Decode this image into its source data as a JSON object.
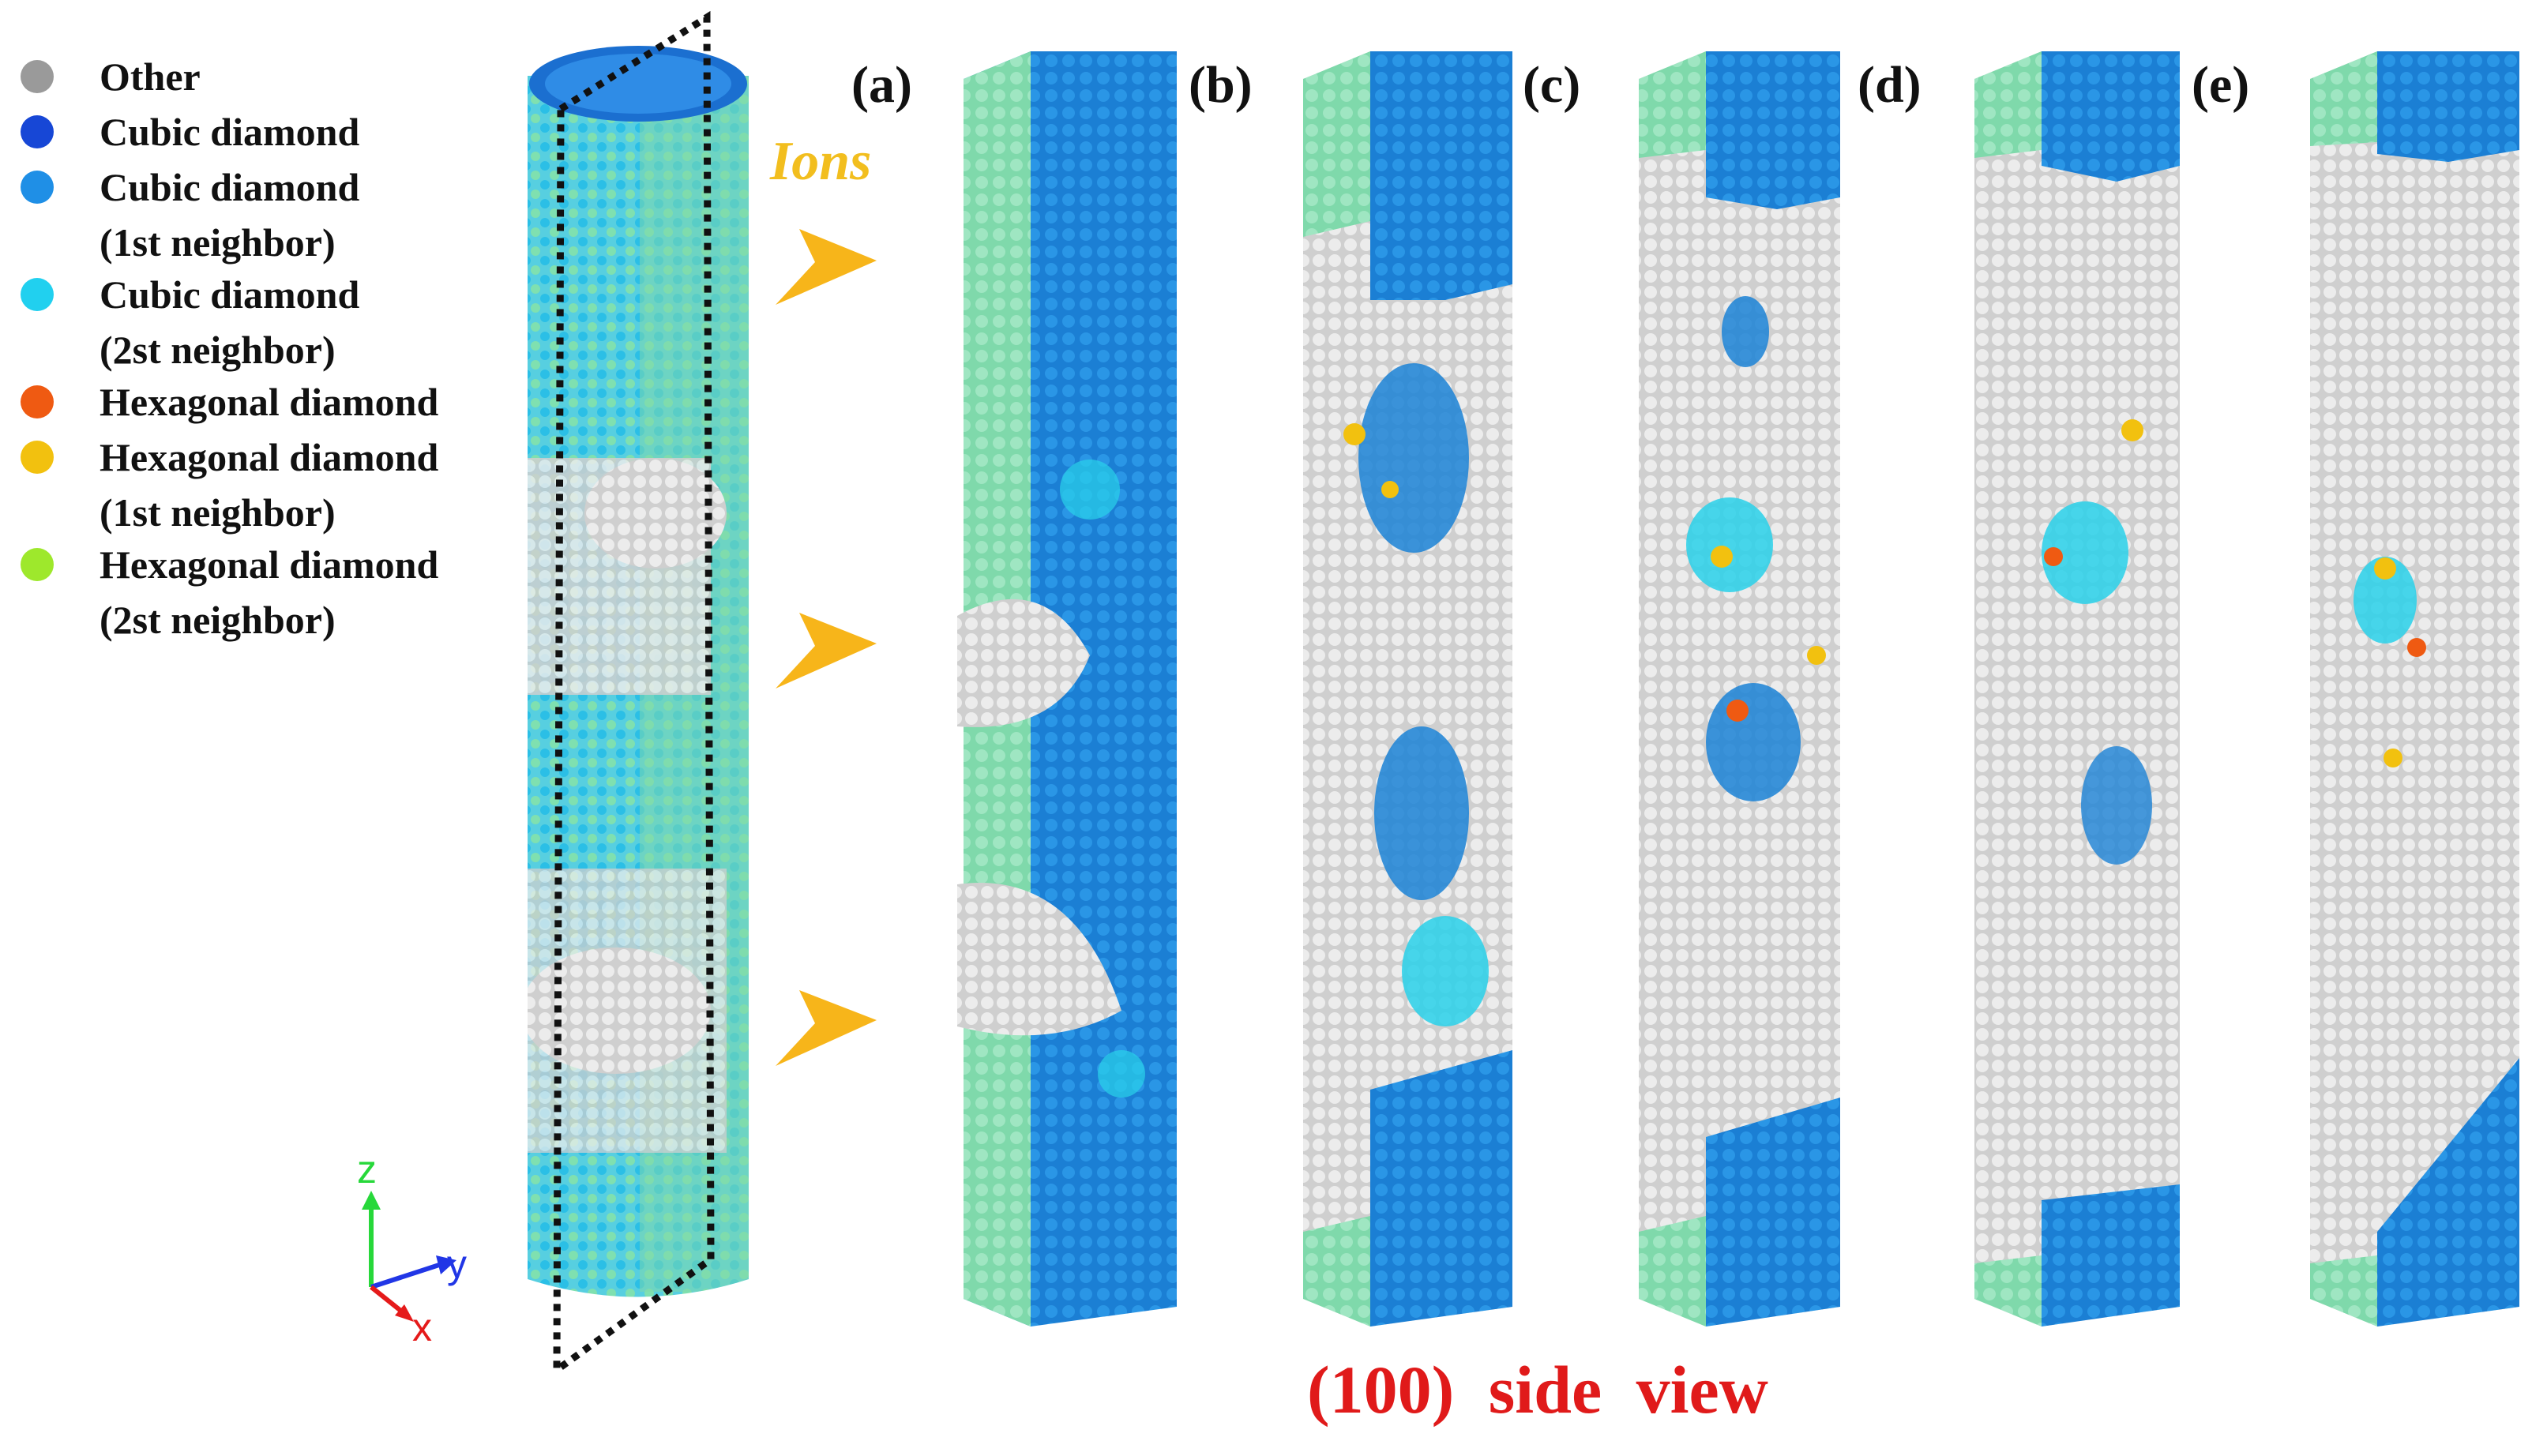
{
  "legend": {
    "items": [
      {
        "label": "Other",
        "color": "#9a9a9a"
      },
      {
        "label": "Cubic diamond",
        "color": "#1747d6"
      },
      {
        "label": "Cubic diamond",
        "sub": "(1st neighbor)",
        "color": "#1f8fe6"
      },
      {
        "label": "Cubic diamond",
        "sub": "(2st neighbor)",
        "color": "#21d0ef"
      },
      {
        "label": "Hexagonal diamond",
        "color": "#ef5a12"
      },
      {
        "label": "Hexagonal diamond",
        "sub": "(1st neighbor)",
        "color": "#f2c10f"
      },
      {
        "label": "Hexagonal diamond",
        "sub": "(2st neighbor)",
        "color": "#9ee82c"
      }
    ]
  },
  "ions_label": "Ions",
  "panels": {
    "a": "(a)",
    "b": "(b)",
    "c": "(c)",
    "d": "(d)",
    "e": "(e)"
  },
  "caption": "(100)  side  view",
  "axes": {
    "z": "z",
    "y": "y",
    "x": "x"
  },
  "colors": {
    "surface_green": "#7fd9ab",
    "cubic_blue": "#1b82d6",
    "cyan": "#29d1ea",
    "other_gray": "#d9d9d9",
    "hexagonal": "#f2c10f",
    "hexagonal_orange": "#ef5a12",
    "caption_red": "#e01a1a",
    "ions_gold": "#f2be1e"
  }
}
